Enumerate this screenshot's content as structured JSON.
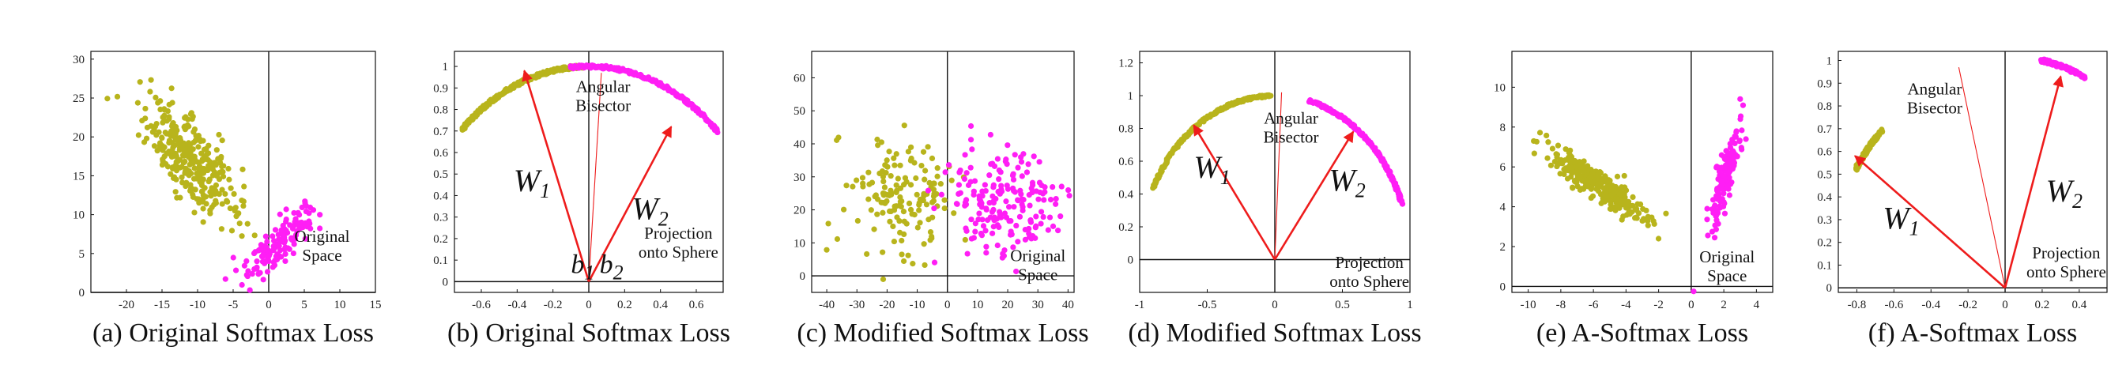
{
  "colors": {
    "class1": "#b8b41c",
    "class2": "#ff1ef5",
    "vector": "#ee1c1c",
    "axis": "#111111"
  },
  "chart_data": [
    {
      "id": "a",
      "type": "scatter",
      "caption": "(a) Original Softmax Loss",
      "xlim": [
        -25,
        15
      ],
      "ylim": [
        0,
        31
      ],
      "xticks": [
        "-20",
        "-15",
        "-10",
        "-5",
        "0",
        "5",
        "10",
        "15"
      ],
      "yticks": [
        "0",
        "5",
        "10",
        "15",
        "20",
        "25",
        "30"
      ],
      "axis_cross": {
        "x": 0,
        "y": 0
      },
      "series": [
        {
          "color": "class1",
          "cluster": {
            "center": [
              -11,
              17
            ],
            "spread": [
              3.5,
              3.8
            ],
            "corr": -0.75,
            "n": 320
          }
        },
        {
          "color": "class2",
          "cluster": {
            "center": [
              1.5,
              6.5
            ],
            "spread": [
              2.5,
              2.4
            ],
            "corr": 0.8,
            "n": 150
          }
        }
      ],
      "annotations": [
        {
          "lines": [
            "Original",
            "Space"
          ],
          "at": [
            7.5,
            6.5
          ]
        }
      ]
    },
    {
      "id": "b",
      "type": "scatter",
      "caption": "(b) Original Softmax Loss",
      "xlim": [
        -0.75,
        0.75
      ],
      "ylim": [
        -0.05,
        1.07
      ],
      "xticks": [
        "-0.6",
        "-0.4",
        "-0.2",
        "0",
        "0.2",
        "0.4",
        "0.6"
      ],
      "yticks": [
        "0",
        "0.1",
        "0.2",
        "0.3",
        "0.4",
        "0.5",
        "0.6",
        "0.7",
        "0.8",
        "0.9",
        "1"
      ],
      "axis_cross": {
        "x": 0,
        "y": 0
      },
      "series": [
        {
          "color": "class1",
          "arc": {
            "radius": 1,
            "from_deg": 135,
            "to_deg": 92,
            "n": 200
          }
        },
        {
          "color": "class2",
          "arc": {
            "radius": 1,
            "from_deg": 96,
            "to_deg": 44,
            "n": 200
          }
        }
      ],
      "vectors": [
        {
          "from": [
            0,
            0
          ],
          "to": [
            -0.36,
            0.98
          ],
          "label": "W",
          "sub": "1",
          "label_at": [
            -0.42,
            0.42
          ]
        },
        {
          "from": [
            0,
            0
          ],
          "to": [
            0.46,
            0.72
          ],
          "label": "W",
          "sub": "2",
          "label_at": [
            0.24,
            0.29
          ]
        }
      ],
      "bisector": {
        "from": [
          0,
          0
        ],
        "to": [
          0.07,
          0.97
        ]
      },
      "bias_labels": [
        {
          "label": "b",
          "sub": "1",
          "at": [
            -0.1,
            0.04
          ]
        },
        {
          "label": "b",
          "sub": "2",
          "at": [
            0.06,
            0.04
          ]
        }
      ],
      "annotations": [
        {
          "lines": [
            "Angular",
            "Bisector"
          ],
          "at": [
            0.08,
            0.88
          ]
        },
        {
          "lines": [
            "Projection",
            "onto Sphere"
          ],
          "at": [
            0.5,
            0.2
          ]
        }
      ]
    },
    {
      "id": "c",
      "type": "scatter",
      "caption": "(c) Modified Softmax Loss",
      "xlim": [
        -45,
        42
      ],
      "ylim": [
        -5,
        68
      ],
      "xticks": [
        "-40",
        "-30",
        "-20",
        "-10",
        "0",
        "10",
        "20",
        "30",
        "40"
      ],
      "yticks": [
        "0",
        "10",
        "20",
        "30",
        "40",
        "50",
        "60"
      ],
      "axis_cross": {
        "x": 0,
        "y": 0
      },
      "series": [
        {
          "color": "class1",
          "cluster": {
            "center": [
              -16,
              23
            ],
            "spread": [
              9,
              9
            ],
            "corr": 0,
            "n": 150
          }
        },
        {
          "color": "class2",
          "cluster": {
            "center": [
              19,
              23
            ],
            "spread": [
              10,
              8
            ],
            "corr": 0,
            "n": 190
          }
        }
      ],
      "annotations": [
        {
          "lines": [
            "Original",
            "Space"
          ],
          "at": [
            30,
            4.5
          ]
        }
      ]
    },
    {
      "id": "d",
      "type": "scatter",
      "caption": "(d) Modified Softmax Loss",
      "xlim": [
        -1,
        1
      ],
      "ylim": [
        -0.2,
        1.27
      ],
      "xticks": [
        "-1",
        "-0.5",
        "0",
        "0.5",
        "1"
      ],
      "yticks": [
        "0",
        "0.2",
        "0.4",
        "0.6",
        "0.8",
        "1",
        "1.2"
      ],
      "axis_cross": {
        "x": 0,
        "y": 0
      },
      "series": [
        {
          "color": "class1",
          "arc": {
            "radius": 1,
            "from_deg": 154,
            "to_deg": 92,
            "n": 180
          }
        },
        {
          "color": "class2",
          "arc": {
            "radius": 1,
            "from_deg": 75,
            "to_deg": 20,
            "n": 200
          }
        }
      ],
      "vectors": [
        {
          "from": [
            0,
            0
          ],
          "to": [
            -0.6,
            0.82
          ],
          "label": "W",
          "sub": "1",
          "label_at": [
            -0.6,
            0.5
          ]
        },
        {
          "from": [
            0,
            0
          ],
          "to": [
            0.58,
            0.78
          ],
          "label": "W",
          "sub": "2",
          "label_at": [
            0.4,
            0.42
          ]
        }
      ],
      "bisector": {
        "from": [
          0,
          0
        ],
        "to": [
          0.05,
          1.02
        ]
      },
      "annotations": [
        {
          "lines": [
            "Angular",
            "Bisector"
          ],
          "at": [
            0.12,
            0.83
          ]
        },
        {
          "lines": [
            "Projection",
            "onto Sphere"
          ],
          "at": [
            0.7,
            -0.05
          ]
        }
      ]
    },
    {
      "id": "e",
      "type": "scatter",
      "caption": "(e) A-Softmax Loss",
      "xlim": [
        -11,
        5
      ],
      "ylim": [
        -0.3,
        11.8
      ],
      "xticks": [
        "-10",
        "-8",
        "-6",
        "-4",
        "-2",
        "0",
        "2",
        "4"
      ],
      "yticks": [
        "0",
        "2",
        "4",
        "6",
        "8",
        "10"
      ],
      "axis_cross": {
        "x": 0,
        "y": 0
      },
      "series": [
        {
          "color": "class1",
          "cluster": {
            "center": [
              -5.8,
              5.2
            ],
            "spread": [
              1.5,
              0.9
            ],
            "corr": -0.9,
            "n": 300
          }
        },
        {
          "color": "class2",
          "cluster": {
            "center": [
              2.1,
              5.5
            ],
            "spread": [
              0.5,
              1.4
            ],
            "corr": 0.85,
            "n": 150
          }
        }
      ],
      "annotations": [
        {
          "lines": [
            "Original",
            "Space"
          ],
          "at": [
            2.2,
            1.2
          ]
        }
      ]
    },
    {
      "id": "f",
      "type": "scatter",
      "caption": "(f) A-Softmax Loss",
      "xlim": [
        -0.9,
        0.55
      ],
      "ylim": [
        -0.02,
        1.04
      ],
      "xticks": [
        "-0.8",
        "-0.6",
        "-0.4",
        "-0.2",
        "0",
        "0.2",
        "0.4"
      ],
      "yticks": [
        "0",
        "0.1",
        "0.2",
        "0.3",
        "0.4",
        "0.5",
        "0.6",
        "0.7",
        "0.8",
        "0.9",
        "1"
      ],
      "axis_cross": {
        "x": 0,
        "y": 0
      },
      "series": [
        {
          "color": "class1",
          "arc": {
            "radius": 0.96,
            "from_deg": 147,
            "to_deg": 134,
            "n": 90
          }
        },
        {
          "color": "class2",
          "arc": {
            "radius": 1.02,
            "from_deg": 79,
            "to_deg": 65,
            "n": 90
          }
        }
      ],
      "vectors": [
        {
          "from": [
            0,
            0
          ],
          "to": [
            -0.81,
            0.58
          ],
          "label": "W",
          "sub": "1",
          "label_at": [
            -0.66,
            0.26
          ]
        },
        {
          "from": [
            0,
            0
          ],
          "to": [
            0.3,
            0.93
          ],
          "label": "W",
          "sub": "2",
          "label_at": [
            0.22,
            0.38
          ]
        }
      ],
      "bisector": {
        "from": [
          0,
          0
        ],
        "to": [
          -0.25,
          0.97
        ]
      },
      "annotations": [
        {
          "lines": [
            "Angular",
            "Bisector"
          ],
          "at": [
            -0.38,
            0.85
          ]
        },
        {
          "lines": [
            "Projection",
            "onto Sphere"
          ],
          "at": [
            0.33,
            0.13
          ]
        }
      ]
    }
  ]
}
